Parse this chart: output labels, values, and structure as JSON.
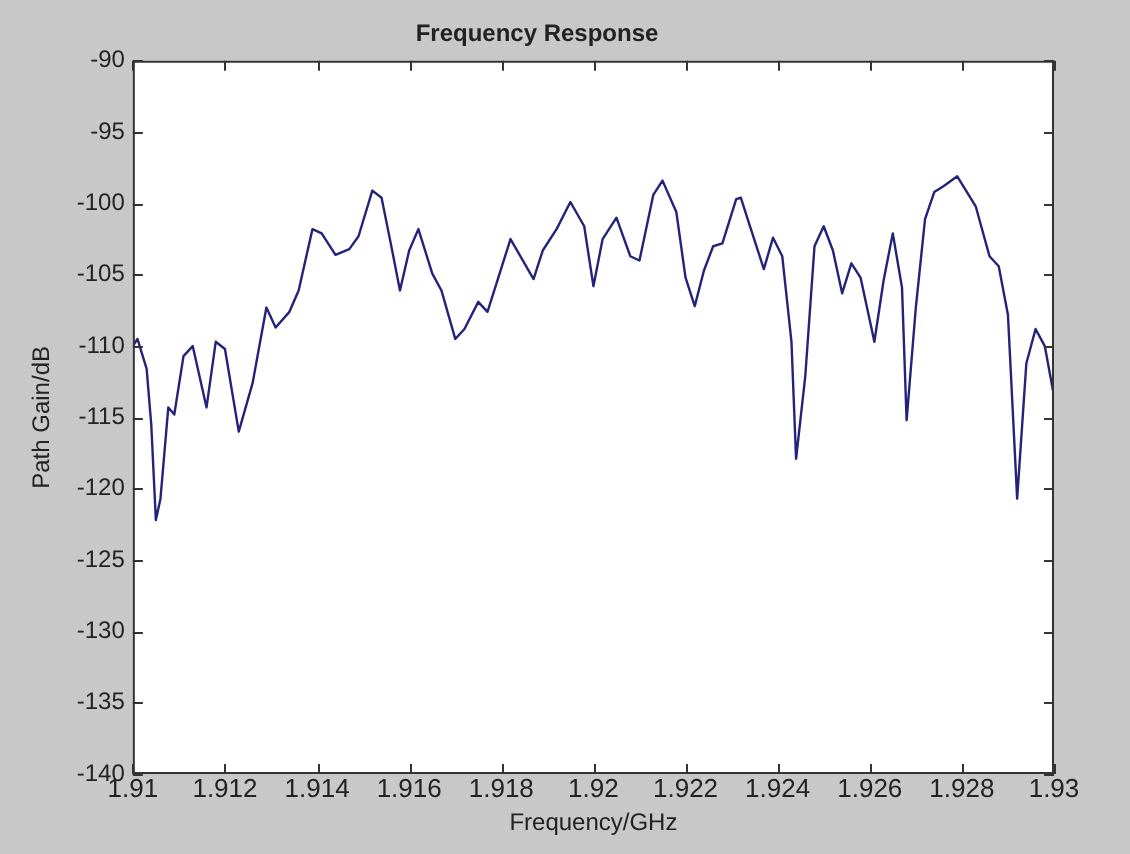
{
  "chart_data": {
    "type": "line",
    "title": "Frequency Response",
    "xlabel": "Frequency/GHz",
    "ylabel": "Path Gain/dB",
    "xlim": [
      1.91,
      1.93
    ],
    "xticks": [
      1.91,
      1.912,
      1.914,
      1.916,
      1.918,
      1.92,
      1.922,
      1.924,
      1.926,
      1.928,
      1.93
    ],
    "ylim": [
      -140,
      -90
    ],
    "yticks": [
      -140,
      -135,
      -130,
      -125,
      -120,
      -115,
      -110,
      -105,
      -100,
      -95,
      -90
    ],
    "grid": false,
    "legend": false,
    "marker": "none",
    "line_style": "solid",
    "series": [
      {
        "color": "#23237a",
        "x": [
          1.91,
          1.9101,
          1.9103,
          1.9104,
          1.9105,
          1.9106,
          1.91077,
          1.9109,
          1.9111,
          1.9113,
          1.9116,
          1.9118,
          1.912,
          1.9123,
          1.9126,
          1.9129,
          1.9131,
          1.9134,
          1.9136,
          1.9139,
          1.9141,
          1.9144,
          1.9147,
          1.9149,
          1.9152,
          1.9154,
          1.9156,
          1.9158,
          1.916,
          1.9162,
          1.9165,
          1.9167,
          1.917,
          1.9172,
          1.9175,
          1.9177,
          1.9182,
          1.9187,
          1.9189,
          1.9192,
          1.9195,
          1.9198,
          1.92,
          1.9202,
          1.9205,
          1.9208,
          1.921,
          1.9213,
          1.9215,
          1.9218,
          1.922,
          1.9222,
          1.9224,
          1.9226,
          1.9228,
          1.9231,
          1.9232,
          1.9234,
          1.9237,
          1.9239,
          1.9241,
          1.9243,
          1.9244,
          1.9246,
          1.9248,
          1.925,
          1.9252,
          1.9254,
          1.9256,
          1.9258,
          1.9261,
          1.9263,
          1.9265,
          1.9267,
          1.9268,
          1.927,
          1.9272,
          1.9274,
          1.9276,
          1.9279,
          1.9283,
          1.9286,
          1.9288,
          1.929,
          1.9292,
          1.9294,
          1.9296,
          1.9298,
          1.93
        ],
        "values": [
          -110,
          -109.5,
          -111.6,
          -115.5,
          -122.2,
          -120.7,
          -114.3,
          -114.8,
          -110.7,
          -110,
          -114.3,
          -109.7,
          -110.2,
          -116,
          -112.6,
          -107.3,
          -108.7,
          -107.6,
          -106.1,
          -101.8,
          -102.1,
          -103.6,
          -103.2,
          -102.3,
          -99.1,
          -99.6,
          -102.8,
          -106.1,
          -103.3,
          -101.8,
          -104.9,
          -106.1,
          -109.5,
          -108.8,
          -106.9,
          -107.6,
          -102.5,
          -105.3,
          -103.3,
          -101.8,
          -99.9,
          -101.6,
          -105.8,
          -102.5,
          -101,
          -103.7,
          -104,
          -99.4,
          -98.4,
          -100.6,
          -105.2,
          -107.2,
          -104.7,
          -103,
          -102.8,
          -99.7,
          -99.6,
          -101.6,
          -104.6,
          -102.4,
          -103.7,
          -109.7,
          -117.9,
          -112.1,
          -103,
          -101.6,
          -103.3,
          -106.3,
          -104.2,
          -105.2,
          -109.7,
          -105.4,
          -102.1,
          -105.9,
          -115.2,
          -107.3,
          -101.1,
          -99.2,
          -98.8,
          -98.1,
          -100.2,
          -103.7,
          -104.4,
          -107.8,
          -120.7,
          -111.2,
          -108.8,
          -110,
          -113.5
        ]
      }
    ]
  }
}
